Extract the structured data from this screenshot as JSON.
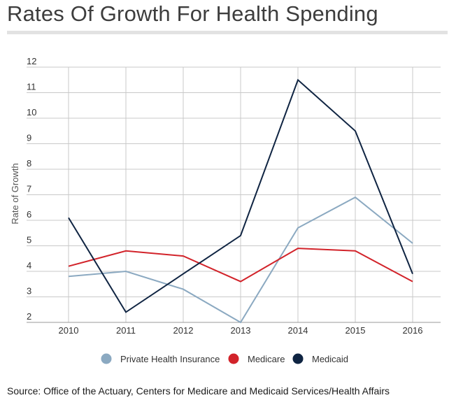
{
  "title": "Rates Of Growth For Health Spending",
  "source": "Source: Office of the Actuary, Centers for Medicare and Medicaid Services/Health Affairs",
  "chart_data": {
    "type": "line",
    "title": "Rates Of Growth For Health Spending",
    "xlabel": "",
    "ylabel": "Rate of Growth",
    "categories": [
      "2010",
      "2011",
      "2012",
      "2013",
      "2014",
      "2015",
      "2016"
    ],
    "yticks": [
      2,
      3,
      4,
      5,
      6,
      7,
      8,
      9,
      10,
      11,
      12
    ],
    "ylim": [
      2,
      12
    ],
    "grid": true,
    "legend_position": "bottom",
    "series": [
      {
        "name": "Private Health Insurance",
        "color": "#8ba9c1",
        "values": [
          3.8,
          4.0,
          3.3,
          2.0,
          5.7,
          6.9,
          5.1
        ]
      },
      {
        "name": "Medicare",
        "color": "#d2232a",
        "values": [
          4.2,
          4.8,
          4.6,
          3.6,
          4.9,
          4.8,
          3.6
        ]
      },
      {
        "name": "Medicaid",
        "color": "#0f2442",
        "values": [
          6.1,
          2.4,
          3.9,
          5.4,
          11.5,
          9.5,
          3.9
        ]
      }
    ]
  }
}
